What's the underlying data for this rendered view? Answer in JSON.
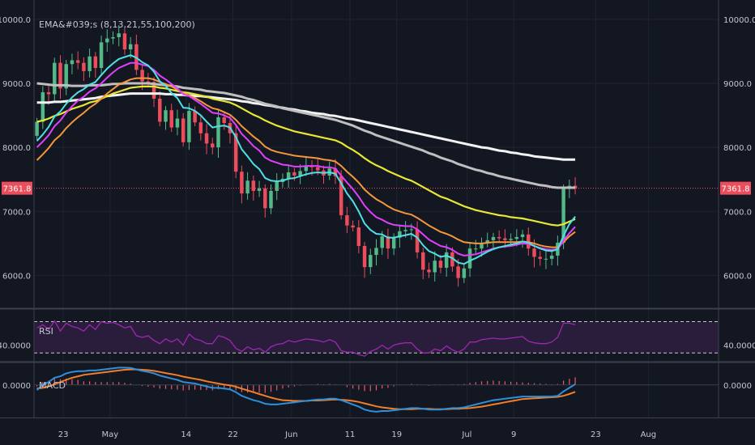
{
  "colors": {
    "background": "#131722",
    "grid": "#1f2431",
    "separator": "#3b404d",
    "up": "#53b987",
    "down": "#eb4d5c",
    "price_line": "#eb4d5c",
    "ema8": "#4fe0e6",
    "ema13": "#e040fb",
    "ema21": "#f5973a",
    "ema55": "#e8e834",
    "ema100": "#bfbfbf",
    "ema200": "#f2f2f2",
    "rsi": "#9c27b0",
    "rsi_band": "#2a1d3c",
    "macd": "#2f8fd8",
    "signal": "#f07e2a",
    "hist": "#ea5a6a"
  },
  "chart_data": [
    {
      "type": "candlestick",
      "title": "EMA&#039;s (8,13,21,55,100,200)",
      "ylim": [
        5500,
        10200
      ],
      "y_ticks": [
        "10000.0",
        "9000.0",
        "8000.0",
        "7000.0",
        "6000.0"
      ],
      "y_tick_values": [
        10000,
        9000,
        8000,
        7000,
        6000
      ],
      "last_price_label": "7361.8",
      "last_price": 7361.8,
      "x_ticks": [
        "23",
        "May",
        "14",
        "22",
        "Jun",
        "11",
        "19",
        "Jul",
        "9",
        "23",
        "Aug"
      ],
      "x_tick_days": [
        -8,
        0,
        13,
        21,
        31,
        41,
        49,
        61,
        69,
        83,
        92
      ],
      "x_range_days": [
        -13,
        104
      ],
      "closes": [
        8400,
        8860,
        8830,
        9320,
        8920,
        9300,
        9360,
        9320,
        9190,
        9420,
        9240,
        9640,
        9700,
        9720,
        9780,
        9530,
        9610,
        9210,
        9030,
        9020,
        8760,
        8400,
        8580,
        8310,
        8450,
        8080,
        8570,
        8390,
        8220,
        8060,
        8000,
        8470,
        8380,
        8220,
        7620,
        7280,
        7480,
        7320,
        7360,
        7050,
        7320,
        7460,
        7510,
        7610,
        7560,
        7630,
        7710,
        7690,
        7640,
        7560,
        7670,
        7550,
        6940,
        6780,
        6750,
        6460,
        6130,
        6320,
        6430,
        6610,
        6420,
        6590,
        6690,
        6710,
        6720,
        6360,
        6090,
        6050,
        6230,
        6120,
        6360,
        6140,
        5960,
        6110,
        6420,
        6420,
        6510,
        6550,
        6600,
        6580,
        6550,
        6570,
        6600,
        6640,
        6420,
        6290,
        6260,
        6260,
        6310,
        6510,
        7360,
        7400,
        7361.8
      ],
      "ema8": [
        8100,
        8200,
        8320,
        8480,
        8560,
        8680,
        8780,
        8860,
        8910,
        8980,
        9020,
        9130,
        9230,
        9310,
        9380,
        9410,
        9440,
        9400,
        9330,
        9280,
        9180,
        9030,
        8960,
        8850,
        8770,
        8620,
        8610,
        8570,
        8500,
        8400,
        8310,
        8330,
        8340,
        8310,
        8160,
        7970,
        7860,
        7740,
        7660,
        7520,
        7480,
        7470,
        7480,
        7510,
        7520,
        7550,
        7580,
        7600,
        7610,
        7600,
        7610,
        7590,
        7440,
        7280,
        7160,
        7000,
        6810,
        6710,
        6650,
        6640,
        6590,
        6590,
        6610,
        6630,
        6650,
        6590,
        6470,
        6380,
        6340,
        6290,
        6310,
        6270,
        6200,
        6180,
        6230,
        6270,
        6320,
        6370,
        6410,
        6440,
        6460,
        6480,
        6500,
        6530,
        6510,
        6460,
        6420,
        6390,
        6380,
        6410,
        6620,
        6800,
        6920
      ],
      "ema13": [
        8000,
        8090,
        8190,
        8330,
        8420,
        8540,
        8640,
        8730,
        8790,
        8870,
        8920,
        9000,
        9090,
        9170,
        9240,
        9280,
        9320,
        9320,
        9290,
        9270,
        9210,
        9120,
        9060,
        8990,
        8920,
        8830,
        8800,
        8740,
        8680,
        8610,
        8540,
        8530,
        8500,
        8460,
        8350,
        8210,
        8120,
        8020,
        7950,
        7840,
        7790,
        7760,
        7730,
        7720,
        7700,
        7700,
        7710,
        7710,
        7710,
        7690,
        7690,
        7670,
        7560,
        7450,
        7350,
        7230,
        7090,
        6990,
        6910,
        6870,
        6820,
        6790,
        6780,
        6770,
        6770,
        6720,
        6640,
        6560,
        6510,
        6460,
        6440,
        6400,
        6340,
        6310,
        6320,
        6330,
        6360,
        6390,
        6420,
        6440,
        6450,
        6460,
        6480,
        6500,
        6490,
        6460,
        6430,
        6410,
        6400,
        6410,
        6540,
        6660,
        6760
      ],
      "ema21": [
        7800,
        7890,
        7990,
        8110,
        8190,
        8300,
        8390,
        8470,
        8540,
        8620,
        8680,
        8760,
        8840,
        8910,
        8980,
        9020,
        9060,
        9080,
        9080,
        9080,
        9060,
        9020,
        8990,
        8950,
        8900,
        8850,
        8810,
        8770,
        8720,
        8660,
        8610,
        8590,
        8550,
        8510,
        8430,
        8330,
        8250,
        8170,
        8100,
        8010,
        7960,
        7930,
        7910,
        7890,
        7870,
        7860,
        7850,
        7840,
        7830,
        7810,
        7800,
        7780,
        7710,
        7620,
        7540,
        7450,
        7340,
        7260,
        7190,
        7140,
        7080,
        7030,
        7000,
        6970,
        6950,
        6900,
        6840,
        6780,
        6730,
        6680,
        6650,
        6610,
        6560,
        6520,
        6510,
        6500,
        6500,
        6510,
        6520,
        6520,
        6520,
        6520,
        6520,
        6530,
        6520,
        6500,
        6470,
        6450,
        6440,
        6440,
        6520,
        6610,
        6680
      ],
      "ema55": [
        8400,
        8420,
        8450,
        8490,
        8520,
        8560,
        8600,
        8630,
        8660,
        8700,
        8720,
        8760,
        8800,
        8840,
        8870,
        8900,
        8930,
        8940,
        8950,
        8950,
        8950,
        8930,
        8920,
        8900,
        8880,
        8860,
        8850,
        8830,
        8810,
        8790,
        8760,
        8740,
        8720,
        8700,
        8660,
        8610,
        8560,
        8510,
        8470,
        8420,
        8380,
        8340,
        8310,
        8280,
        8250,
        8230,
        8210,
        8190,
        8170,
        8150,
        8130,
        8110,
        8070,
        8010,
        7960,
        7900,
        7830,
        7770,
        7720,
        7680,
        7630,
        7590,
        7550,
        7510,
        7480,
        7430,
        7380,
        7330,
        7280,
        7230,
        7200,
        7160,
        7120,
        7080,
        7050,
        7020,
        7000,
        6980,
        6960,
        6940,
        6930,
        6910,
        6900,
        6890,
        6870,
        6850,
        6830,
        6810,
        6790,
        6780,
        6800,
        6840,
        6880
      ],
      "ema100": [
        9000,
        8990,
        8980,
        8970,
        8970,
        8970,
        8960,
        8960,
        8960,
        8970,
        8970,
        8970,
        8980,
        8990,
        8990,
        9000,
        9000,
        9000,
        9000,
        9000,
        8990,
        8980,
        8970,
        8960,
        8950,
        8930,
        8920,
        8910,
        8900,
        8880,
        8870,
        8860,
        8850,
        8830,
        8810,
        8790,
        8760,
        8740,
        8710,
        8680,
        8660,
        8640,
        8610,
        8590,
        8570,
        8550,
        8530,
        8510,
        8490,
        8470,
        8450,
        8430,
        8400,
        8370,
        8340,
        8300,
        8260,
        8230,
        8190,
        8160,
        8130,
        8100,
        8070,
        8040,
        8010,
        7980,
        7950,
        7910,
        7880,
        7840,
        7810,
        7780,
        7740,
        7710,
        7680,
        7650,
        7630,
        7600,
        7580,
        7550,
        7530,
        7510,
        7490,
        7470,
        7450,
        7430,
        7410,
        7400,
        7380,
        7370,
        7370,
        7370,
        7370
      ],
      "ema200": [
        8700,
        8700,
        8700,
        8710,
        8710,
        8720,
        8730,
        8740,
        8750,
        8760,
        8770,
        8790,
        8800,
        8810,
        8820,
        8830,
        8840,
        8840,
        8840,
        8840,
        8840,
        8840,
        8830,
        8830,
        8820,
        8820,
        8810,
        8800,
        8800,
        8790,
        8780,
        8770,
        8760,
        8750,
        8740,
        8720,
        8710,
        8690,
        8680,
        8660,
        8650,
        8630,
        8620,
        8600,
        8590,
        8570,
        8560,
        8540,
        8530,
        8520,
        8500,
        8490,
        8470,
        8450,
        8440,
        8420,
        8400,
        8380,
        8360,
        8340,
        8320,
        8300,
        8280,
        8260,
        8240,
        8220,
        8200,
        8180,
        8160,
        8140,
        8120,
        8100,
        8080,
        8060,
        8040,
        8020,
        8000,
        7990,
        7970,
        7950,
        7940,
        7920,
        7910,
        7890,
        7880,
        7860,
        7850,
        7840,
        7830,
        7820,
        7810,
        7810,
        7810
      ]
    },
    {
      "type": "line",
      "title": "RSI",
      "ylim": [
        20,
        85
      ],
      "bands": [
        70,
        30
      ],
      "y_ticks": [
        "40.0000"
      ],
      "y_tick_values": [
        40
      ],
      "values": [
        62,
        66,
        60,
        71,
        58,
        68,
        64,
        62,
        58,
        66,
        60,
        70,
        68,
        69,
        66,
        62,
        64,
        52,
        50,
        52,
        46,
        42,
        48,
        44,
        48,
        40,
        54,
        48,
        46,
        42,
        42,
        52,
        50,
        46,
        36,
        32,
        38,
        34,
        36,
        31,
        38,
        41,
        42,
        46,
        44,
        46,
        48,
        47,
        46,
        44,
        47,
        44,
        33,
        31,
        31,
        28,
        26,
        32,
        35,
        40,
        35,
        40,
        42,
        43,
        43,
        35,
        30,
        30,
        35,
        33,
        39,
        34,
        31,
        35,
        44,
        44,
        47,
        48,
        49,
        48,
        48,
        49,
        50,
        51,
        45,
        43,
        42,
        42,
        44,
        50,
        68,
        68,
        66
      ]
    },
    {
      "type": "line",
      "title": "MACD",
      "ylim": [
        -450,
        300
      ],
      "y_ticks": [
        "0.0000"
      ],
      "y_tick_values": [
        0
      ],
      "macd": [
        -70,
        0,
        40,
        100,
        120,
        160,
        180,
        190,
        190,
        200,
        200,
        210,
        220,
        230,
        240,
        240,
        235,
        215,
        195,
        180,
        160,
        130,
        110,
        90,
        70,
        40,
        30,
        20,
        0,
        -20,
        -40,
        -40,
        -50,
        -60,
        -100,
        -150,
        -180,
        -210,
        -230,
        -260,
        -270,
        -270,
        -260,
        -250,
        -240,
        -230,
        -220,
        -210,
        -200,
        -200,
        -190,
        -190,
        -210,
        -240,
        -270,
        -300,
        -340,
        -360,
        -370,
        -360,
        -360,
        -350,
        -340,
        -330,
        -320,
        -320,
        -330,
        -340,
        -340,
        -340,
        -330,
        -320,
        -320,
        -310,
        -290,
        -270,
        -250,
        -230,
        -210,
        -200,
        -190,
        -180,
        -170,
        -160,
        -160,
        -160,
        -160,
        -160,
        -160,
        -150,
        -90,
        -40,
        10
      ],
      "signal": [
        -50,
        -40,
        -20,
        10,
        40,
        70,
        100,
        120,
        140,
        150,
        160,
        170,
        180,
        190,
        200,
        210,
        215,
        215,
        210,
        205,
        195,
        180,
        165,
        150,
        135,
        115,
        100,
        85,
        70,
        50,
        35,
        20,
        5,
        -5,
        -25,
        -50,
        -75,
        -100,
        -125,
        -150,
        -175,
        -195,
        -210,
        -215,
        -220,
        -220,
        -220,
        -215,
        -215,
        -210,
        -205,
        -200,
        -205,
        -210,
        -220,
        -235,
        -255,
        -275,
        -295,
        -310,
        -320,
        -330,
        -335,
        -335,
        -335,
        -330,
        -330,
        -330,
        -335,
        -335,
        -335,
        -330,
        -330,
        -325,
        -320,
        -310,
        -300,
        -285,
        -270,
        -255,
        -240,
        -225,
        -210,
        -195,
        -190,
        -185,
        -180,
        -175,
        -170,
        -165,
        -150,
        -125,
        -95
      ]
    }
  ]
}
